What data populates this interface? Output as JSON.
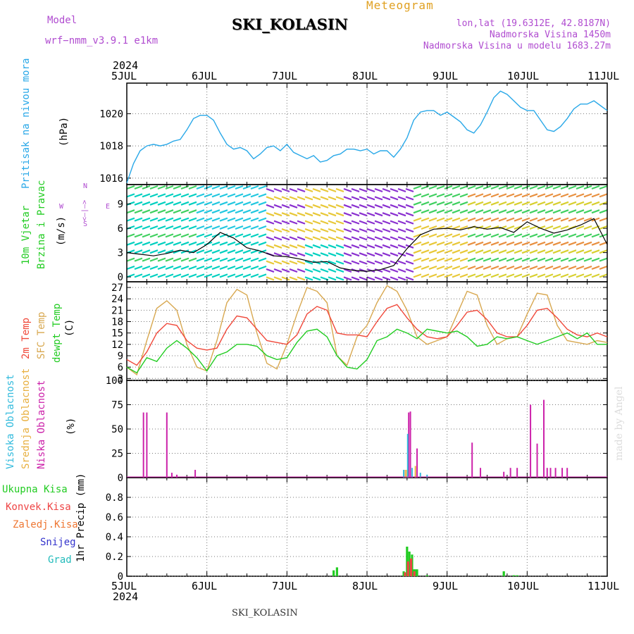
{
  "header": {
    "model_label": "Model",
    "model_value": "wrf−nmm_v3.9.1  e1km",
    "site": "SKI_KOLASIN",
    "meteogram": "Meteogram",
    "coords": "lon,lat (19.6312E, 42.8187N)",
    "elev": "Nadmorska Visina 1450m",
    "elev_model": "Nadmorska Visina u modelu 1683.27m"
  },
  "time_axis": {
    "year": "2024",
    "ticks": [
      "5JUL",
      "6JUL",
      "7JUL",
      "8JUL",
      "9JUL",
      "10JUL",
      "11JUL"
    ]
  },
  "footer": {
    "site": "SKI_KOLASIN",
    "credit": "made by Angel"
  },
  "colors": {
    "pressure": "#29a8e8",
    "t2m": "#f0483a",
    "sfc": "#d8a850",
    "dewpt": "#22cc22",
    "high_cloud": "#33bbdd",
    "mid_cloud": "#e8b040",
    "low_cloud": "#cc22aa",
    "total_precip": "#22cc22",
    "conv_precip": "#ee4444",
    "frz_precip": "#ee7733",
    "snow": "#3333cc",
    "hail": "#22bbbb"
  },
  "panels": {
    "pressure": {
      "label": "Pritisak na nivou mora",
      "unit": "(hPa)"
    },
    "wind": {
      "label1": "10m Vjetar",
      "label2": "Brzina i Pravac",
      "unit": "(m/s)",
      "compass": {
        "n": "N",
        "s": "S",
        "e": "E",
        "w": "W",
        "mid": "<–|–>"
      }
    },
    "temp": {
      "label1": "2m Temp",
      "label2": "SFC Temp",
      "label3": "dewpt Temp",
      "unit": "(C)"
    },
    "cloud": {
      "label1": "Visoka Oblacnost",
      "label2": "Srednja Oblacnost",
      "label3": "Niska Oblacnost",
      "unit": "(%)"
    },
    "precip": {
      "label_total": "Ukupna Kisa",
      "label_conv": "Konvek.Kisa",
      "label_frz": "Zaledj.Kisa",
      "label_snow": "Snijeg",
      "label_hail": "Grad",
      "unit": "1hr Precip (mm)"
    }
  },
  "chart_data": [
    {
      "type": "line",
      "title": "",
      "ylabel": "Pritisak na nivou mora (hPa)",
      "ylim": [
        1015.6,
        1021.9
      ],
      "yticks": [
        1016,
        1018,
        1020
      ],
      "grid": true,
      "x_unit": "hours since 5JUL 00",
      "series": [
        {
          "name": "Pritisak na nivou mora",
          "x": [
            0,
            2,
            4,
            6,
            8,
            10,
            12,
            14,
            16,
            18,
            20,
            22,
            24,
            26,
            28,
            30,
            32,
            34,
            36,
            38,
            40,
            42,
            44,
            46,
            48,
            50,
            52,
            54,
            56,
            58,
            60,
            62,
            64,
            66,
            68,
            70,
            72,
            74,
            76,
            78,
            80,
            82,
            84,
            86,
            88,
            90,
            92,
            94,
            96,
            98,
            100,
            102,
            104,
            106,
            108,
            110,
            112,
            114,
            116,
            118,
            120,
            122,
            124,
            126,
            128,
            130,
            132,
            134,
            136,
            138,
            140,
            142,
            144
          ],
          "values": [
            1015.7,
            1016.9,
            1017.7,
            1018.0,
            1018.1,
            1018.0,
            1018.1,
            1018.3,
            1018.4,
            1019.0,
            1019.7,
            1019.9,
            1019.9,
            1019.6,
            1018.8,
            1018.1,
            1017.8,
            1017.9,
            1017.7,
            1017.2,
            1017.5,
            1017.9,
            1018.0,
            1017.7,
            1018.1,
            1017.6,
            1017.4,
            1017.2,
            1017.4,
            1017.0,
            1017.1,
            1017.4,
            1017.5,
            1017.8,
            1017.8,
            1017.7,
            1017.8,
            1017.5,
            1017.7,
            1017.7,
            1017.3,
            1017.8,
            1018.5,
            1019.6,
            1020.1,
            1020.2,
            1020.2,
            1019.9,
            1020.1,
            1019.8,
            1019.5,
            1019.0,
            1018.8,
            1019.3,
            1020.1,
            1021.0,
            1021.4,
            1021.2,
            1020.8,
            1020.4,
            1020.2,
            1020.2,
            1019.6,
            1019.0,
            1018.9,
            1019.2,
            1019.7,
            1020.3,
            1020.6,
            1020.6,
            1020.8,
            1020.5,
            1020.2
          ]
        }
      ]
    },
    {
      "type": "line",
      "title": "",
      "ylabel": "10m Vjetar Brzina i Pravac (m/s)",
      "ylim": [
        -0.6,
        11.4
      ],
      "yticks": [
        0,
        3,
        6,
        9
      ],
      "grid": false,
      "series": [
        {
          "name": "10m Vjetar",
          "x": [
            0,
            4,
            8,
            12,
            16,
            20,
            24,
            28,
            32,
            36,
            40,
            44,
            48,
            52,
            56,
            60,
            64,
            68,
            72,
            76,
            80,
            84,
            88,
            92,
            96,
            100,
            104,
            108,
            112,
            116,
            120,
            124,
            128,
            132,
            136,
            140,
            144
          ],
          "values": [
            3.0,
            2.8,
            2.6,
            2.9,
            3.3,
            3.0,
            4.0,
            5.5,
            4.8,
            3.6,
            3.2,
            2.6,
            2.5,
            2.2,
            1.8,
            1.9,
            1.1,
            0.8,
            0.7,
            0.9,
            1.4,
            3.5,
            5.2,
            5.9,
            6.0,
            5.8,
            6.2,
            5.9,
            6.1,
            5.5,
            6.8,
            6.0,
            5.4,
            5.8,
            6.4,
            7.2,
            4.0
          ]
        }
      ]
    },
    {
      "type": "line",
      "title": "",
      "ylabel": "Temp (C)",
      "ylim": [
        2.5,
        28.5
      ],
      "yticks": [
        3,
        6,
        9,
        12,
        15,
        18,
        21,
        24,
        27
      ],
      "grid": true,
      "series": [
        {
          "name": "2m Temp",
          "x": [
            0,
            3,
            6,
            9,
            12,
            15,
            18,
            21,
            24,
            27,
            30,
            33,
            36,
            39,
            42,
            45,
            48,
            51,
            54,
            57,
            60,
            63,
            66,
            69,
            72,
            75,
            78,
            81,
            84,
            87,
            90,
            93,
            96,
            99,
            102,
            105,
            108,
            111,
            114,
            117,
            120,
            123,
            126,
            129,
            132,
            135,
            138,
            141,
            144
          ],
          "values": [
            8,
            6.5,
            10,
            15,
            17.5,
            17,
            13,
            11,
            10.5,
            11,
            16,
            19.5,
            19,
            16,
            13,
            12.5,
            12,
            14.5,
            20,
            22,
            21,
            15,
            14.5,
            14.5,
            14,
            18,
            21.5,
            22.5,
            19,
            16,
            14,
            13.5,
            14,
            17,
            20.5,
            21,
            18.5,
            15,
            14,
            14,
            17,
            21,
            21.5,
            19,
            16,
            14.5,
            14,
            15,
            14
          ]
        },
        {
          "name": "SFC Temp",
          "x": [
            0,
            3,
            6,
            9,
            12,
            15,
            18,
            21,
            24,
            27,
            30,
            33,
            36,
            39,
            42,
            45,
            48,
            51,
            54,
            57,
            60,
            63,
            66,
            69,
            72,
            75,
            78,
            81,
            84,
            87,
            90,
            93,
            96,
            99,
            102,
            105,
            108,
            111,
            114,
            117,
            120,
            123,
            126,
            129,
            132,
            135,
            138,
            141,
            144
          ],
          "values": [
            6,
            4,
            13,
            21.5,
            23.5,
            21,
            12,
            6,
            5,
            13,
            23,
            26.5,
            25,
            15,
            7,
            5.5,
            12,
            20,
            27,
            26,
            23,
            9,
            6.5,
            14,
            17,
            23,
            27.5,
            26,
            21,
            14,
            12,
            13,
            14,
            20,
            26,
            25,
            17,
            12,
            13.5,
            14,
            20,
            25.5,
            25,
            17,
            13,
            12.5,
            12,
            13,
            12.5
          ]
        },
        {
          "name": "dewpt Temp",
          "x": [
            0,
            3,
            6,
            9,
            12,
            15,
            18,
            21,
            24,
            27,
            30,
            33,
            36,
            39,
            42,
            45,
            48,
            51,
            54,
            57,
            60,
            63,
            66,
            69,
            72,
            75,
            78,
            81,
            84,
            87,
            90,
            93,
            96,
            99,
            102,
            105,
            108,
            111,
            114,
            117,
            120,
            123,
            126,
            129,
            132,
            135,
            138,
            141,
            144
          ],
          "values": [
            6,
            4.5,
            8.5,
            7.5,
            11,
            13,
            11,
            8.5,
            5,
            9,
            10,
            12,
            12,
            11.5,
            9,
            8,
            8.5,
            12.5,
            15.5,
            16,
            14,
            9,
            6,
            5.5,
            8,
            13,
            14,
            16,
            15,
            13.5,
            16,
            15.5,
            15,
            15.5,
            14,
            11.5,
            12,
            14,
            13.5,
            14,
            13,
            12,
            13,
            14,
            15,
            13.5,
            15,
            12,
            12
          ]
        }
      ]
    },
    {
      "type": "bar",
      "title": "",
      "ylabel": "Oblacnost (%)",
      "ylim": [
        0,
        100
      ],
      "yticks": [
        0,
        25,
        50,
        75,
        100
      ],
      "grid": true,
      "series": [
        {
          "name": "Niska Oblacnost",
          "x": [
            5,
            6,
            12,
            15,
            13.5,
            20.5,
            84.5,
            85,
            87,
            103.5,
            106,
            121,
            123,
            113,
            115,
            117,
            125,
            126,
            128.5,
            127,
            130.5,
            132
          ],
          "values": [
            67,
            67,
            67,
            3,
            5,
            8,
            67,
            68,
            30,
            36,
            10,
            75,
            35,
            6,
            10,
            10,
            80,
            10,
            10,
            10,
            10,
            10
          ]
        },
        {
          "name": "Srednja Oblacnost",
          "x": [
            83.5,
            84,
            86.5
          ],
          "values": [
            8,
            8,
            12
          ]
        },
        {
          "name": "Visoka Oblacnost",
          "x": [
            83,
            84.2,
            85.5,
            88,
            90
          ],
          "values": [
            8,
            45,
            10,
            5,
            3
          ]
        }
      ]
    },
    {
      "type": "bar",
      "title": "",
      "ylabel": "1hr Precip (mm)",
      "ylim": [
        0,
        1.0
      ],
      "yticks": [
        0,
        0.2,
        0.4,
        0.6,
        0.8
      ],
      "grid": true,
      "series": [
        {
          "name": "Ukupna Kisa",
          "x": [
            62,
            63,
            83,
            84,
            84.7,
            85.5,
            86,
            86.5,
            87,
            90,
            113,
            116,
            117
          ],
          "values": [
            0.06,
            0.09,
            0.05,
            0.3,
            0.25,
            0.22,
            0.07,
            0.07,
            0.07,
            0.01,
            0.05,
            0.01,
            0.01
          ]
        },
        {
          "name": "Konvek.Kisa",
          "x": [
            83.4,
            84.3,
            85.2,
            86.2
          ],
          "values": [
            0.04,
            0.15,
            0.18,
            0.05
          ]
        }
      ]
    }
  ]
}
